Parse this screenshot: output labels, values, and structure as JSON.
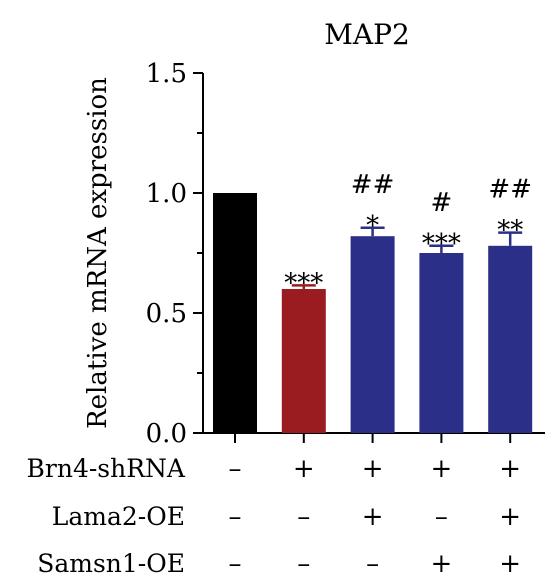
{
  "chart_data": {
    "type": "bar",
    "title": "MAP2",
    "ylabel": "Relative mRNA expression",
    "xlabel": "",
    "ylim": [
      0,
      1.5
    ],
    "yticks": [
      0.0,
      0.5,
      1.0,
      1.5
    ],
    "ytick_labels": [
      "0.0",
      "0.5",
      "1.0",
      "1.5"
    ],
    "grid": false,
    "legend": "none",
    "values": [
      1.0,
      0.6,
      0.82,
      0.75,
      0.78
    ],
    "errors": [
      0.0,
      0.015,
      0.035,
      0.03,
      0.055
    ],
    "colors": [
      "#000000",
      "#9b1c20",
      "#2b2f87",
      "#2b2f87",
      "#2b2f87"
    ],
    "annotations": [
      [],
      [
        "***"
      ],
      [
        "*",
        "##"
      ],
      [
        "***",
        "#"
      ],
      [
        "**",
        "##"
      ]
    ],
    "conditions": [
      {
        "label": "Brn4-shRNA",
        "values": [
          "–",
          "+",
          "+",
          "+",
          "+"
        ]
      },
      {
        "label": "Lama2-OE",
        "values": [
          "–",
          "–",
          "+",
          "–",
          "+"
        ]
      },
      {
        "label": "Samsn1-OE",
        "values": [
          "–",
          "–",
          "–",
          "+",
          "+"
        ]
      }
    ]
  }
}
